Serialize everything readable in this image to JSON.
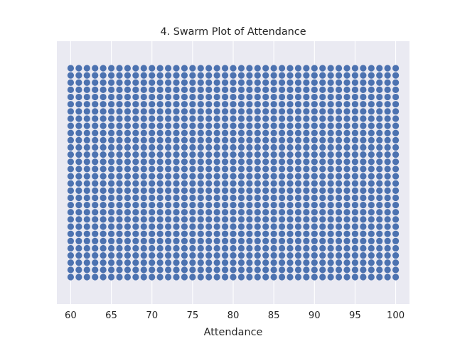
{
  "chart_data": {
    "type": "scatter",
    "subtype": "swarm",
    "title": "4. Swarm Plot of Attendance",
    "xlabel": "Attendance",
    "ylabel": "",
    "xlim": [
      58.3,
      101.7
    ],
    "xticks": [
      60,
      65,
      70,
      75,
      80,
      85,
      90,
      95,
      100
    ],
    "x_values": [
      60,
      61,
      62,
      63,
      64,
      65,
      66,
      67,
      68,
      69,
      70,
      71,
      72,
      73,
      74,
      75,
      76,
      77,
      78,
      79,
      80,
      81,
      82,
      83,
      84,
      85,
      86,
      87,
      88,
      89,
      90,
      91,
      92,
      93,
      94,
      95,
      96,
      97,
      98,
      99,
      100
    ],
    "points_per_value": 30,
    "grid": true,
    "legend": "none",
    "colors": {
      "plot_background": "#eaeaf2",
      "grid": "#ffffff",
      "marker": "#4c72b0",
      "text": "#262626"
    }
  }
}
